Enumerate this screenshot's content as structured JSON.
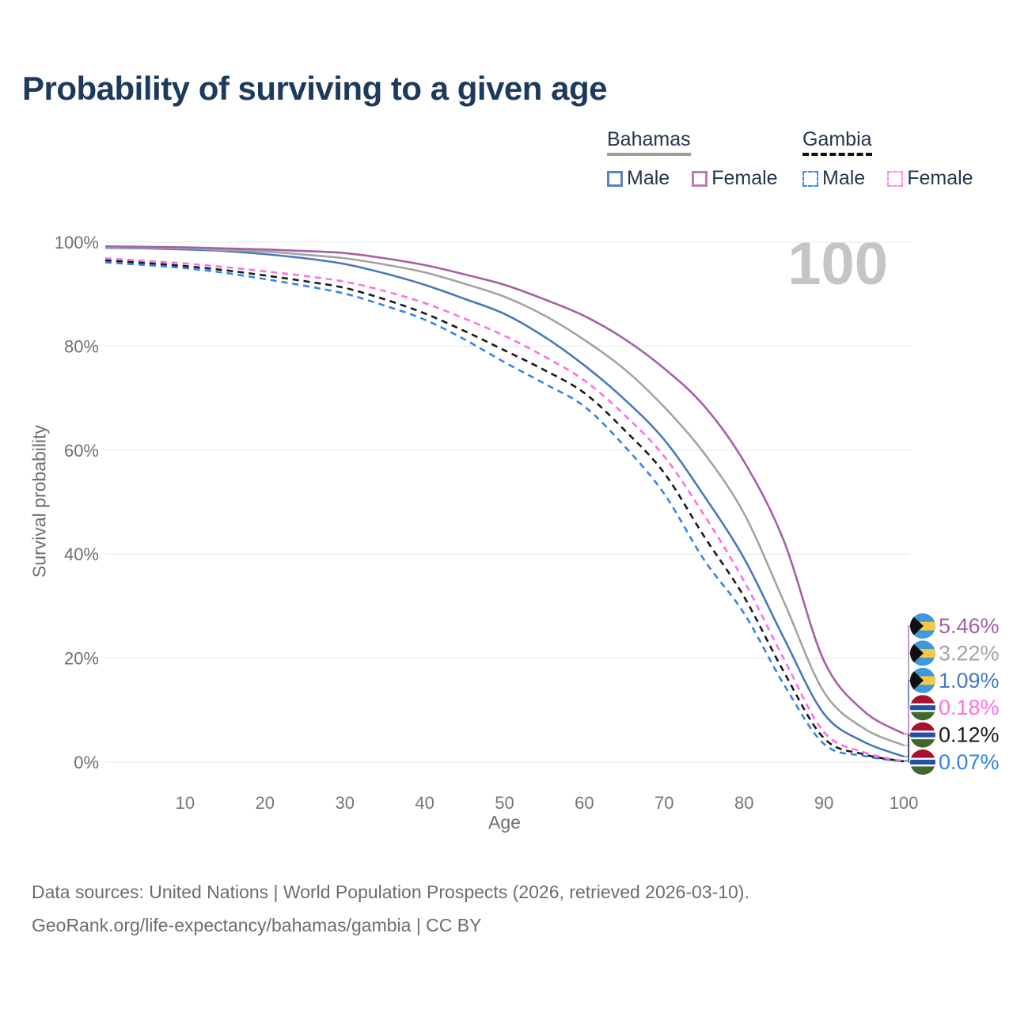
{
  "title": "Probability of surviving to a given age",
  "watermark": "100",
  "legend": {
    "groups": [
      {
        "name": "Bahamas",
        "line_style": "solid",
        "underline_color": "#9e9e9e",
        "items": [
          {
            "label": "Male",
            "color": "#5b82c0"
          },
          {
            "label": "Female",
            "color": "#bc7ab8"
          }
        ]
      },
      {
        "name": "Gambia",
        "line_style": "dashed",
        "underline_color": "#111111",
        "items": [
          {
            "label": "Male",
            "color": "#3b8bef"
          },
          {
            "label": "Female",
            "color": "#ff8ae8"
          }
        ]
      }
    ]
  },
  "chart_data": {
    "type": "line",
    "title": "Probability of surviving to a given age",
    "xlabel": "Age",
    "ylabel": "Survival probability",
    "xlim": [
      0,
      100
    ],
    "ylim": [
      0,
      100
    ],
    "grid": "horizontal",
    "x_ticks": [
      10,
      20,
      30,
      40,
      50,
      60,
      70,
      80,
      90,
      100
    ],
    "y_ticks": [
      0,
      20,
      40,
      60,
      80,
      100
    ],
    "y_tick_suffix": "%",
    "hover_age": "100",
    "x": [
      0,
      5,
      10,
      15,
      20,
      25,
      30,
      35,
      40,
      45,
      50,
      55,
      60,
      65,
      70,
      75,
      80,
      85,
      90,
      95,
      100
    ],
    "series": [
      {
        "name": "Bahamas Female",
        "country": "Bahamas",
        "sex": "Female",
        "color": "#a65fa8",
        "dashed": false,
        "end_label": "5.46%",
        "values": [
          99.2,
          99.1,
          99.0,
          98.8,
          98.6,
          98.3,
          97.9,
          96.9,
          95.6,
          93.8,
          91.8,
          89.0,
          85.8,
          81.4,
          75.7,
          68.5,
          57.8,
          42.5,
          19.5,
          9.8,
          5.46
        ]
      },
      {
        "name": "Bahamas Both sexes",
        "country": "Bahamas",
        "sex": "Both",
        "color": "#a3a3a3",
        "dashed": false,
        "end_label": "3.22%",
        "values": [
          99.0,
          98.9,
          98.8,
          98.5,
          98.2,
          97.6,
          96.9,
          95.7,
          94.2,
          92.0,
          89.5,
          85.9,
          81.2,
          75.6,
          68.3,
          59.4,
          47.8,
          30.8,
          13.5,
          6.5,
          3.22
        ]
      },
      {
        "name": "Bahamas Male",
        "country": "Bahamas",
        "sex": "Male",
        "color": "#4878be",
        "dashed": false,
        "end_label": "1.09%",
        "values": [
          98.9,
          98.8,
          98.6,
          98.3,
          97.7,
          96.9,
          95.8,
          94.0,
          91.8,
          89.1,
          86.2,
          81.8,
          76.3,
          69.8,
          62.0,
          51.2,
          39.2,
          23.8,
          9.3,
          3.9,
          1.09
        ]
      },
      {
        "name": "Gambia Female",
        "country": "Gambia",
        "sex": "Female",
        "color": "#ff70e2",
        "dashed": true,
        "end_label": "0.18%",
        "values": [
          96.9,
          96.4,
          95.9,
          95.2,
          94.4,
          93.5,
          92.4,
          90.6,
          88.3,
          85.3,
          82.0,
          78.0,
          73.4,
          66.8,
          58.8,
          47.5,
          34.8,
          19.8,
          5.8,
          1.9,
          0.18
        ]
      },
      {
        "name": "Gambia Both sexes",
        "country": "Gambia",
        "sex": "Both",
        "color": "#1a1a1a",
        "dashed": true,
        "end_label": "0.12%",
        "values": [
          96.5,
          96.0,
          95.4,
          94.6,
          93.6,
          92.5,
          91.2,
          89.0,
          86.3,
          82.9,
          79.2,
          75.4,
          71.0,
          63.9,
          55.6,
          43.4,
          31.8,
          17.3,
          4.6,
          1.5,
          0.12
        ]
      },
      {
        "name": "Gambia Male",
        "country": "Gambia",
        "sex": "Male",
        "color": "#3285eb",
        "dashed": true,
        "end_label": "0.07%",
        "values": [
          96.1,
          95.6,
          95.0,
          94.1,
          92.9,
          91.6,
          90.1,
          87.8,
          85.1,
          81.3,
          76.9,
          72.8,
          68.4,
          60.8,
          51.6,
          38.9,
          28.6,
          14.9,
          3.5,
          1.2,
          0.07
        ]
      }
    ],
    "flags": {
      "Bahamas": {
        "blue": "#3e98d9",
        "gold": "#f7c843",
        "black": "#101010"
      },
      "Gambia": {
        "red": "#a8112d",
        "white": "#ffffff",
        "blue": "#2351a3",
        "green": "#41682b"
      }
    }
  },
  "footer": {
    "line1": "Data sources: United Nations | World Population Prospects (2026, retrieved 2026-03-10).",
    "line2": "GeoRank.org/life-expectancy/bahamas/gambia | CC BY"
  }
}
